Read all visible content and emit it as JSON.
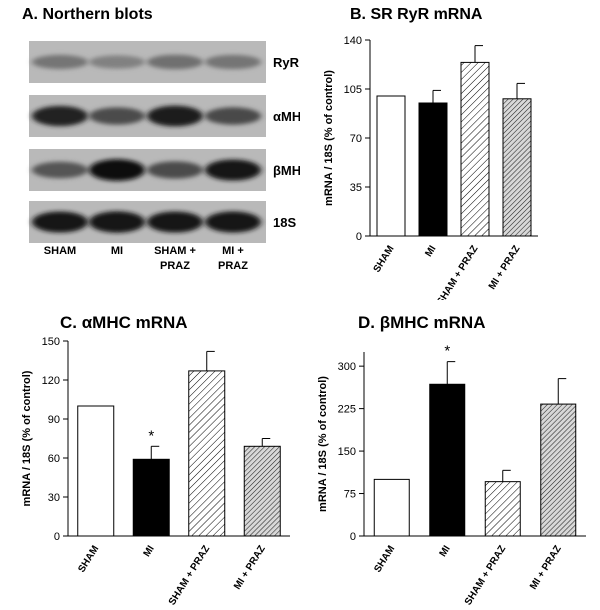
{
  "figure": {
    "panel_a": {
      "title": "A.  Northern blots",
      "rows": [
        {
          "label": "RyR",
          "intensities": [
            0.35,
            0.28,
            0.38,
            0.36
          ]
        },
        {
          "label": "αMHC",
          "intensities": [
            0.85,
            0.6,
            0.9,
            0.62
          ]
        },
        {
          "label": "βMHC",
          "intensities": [
            0.55,
            0.98,
            0.6,
            0.92
          ]
        },
        {
          "label": "18S",
          "intensities": [
            0.92,
            0.95,
            0.92,
            0.93
          ]
        }
      ],
      "lanes": [
        "SHAM",
        "MI",
        "SHAM +\nPRAZ",
        "MI +\nPRAZ"
      ]
    }
  },
  "chart_data": [
    {
      "type": "bar",
      "title": "B.  SR RyR mRNA",
      "ylabel": "mRNA / 18S (% of control)",
      "categories": [
        "SHAM",
        "MI",
        "SHAM + PRAZ",
        "MI + PRAZ"
      ],
      "values": [
        100,
        95,
        124,
        98
      ],
      "errors": [
        0,
        9,
        12,
        11
      ],
      "ylim": [
        0,
        140
      ],
      "yticks": [
        0,
        35,
        70,
        105,
        140
      ],
      "significant": [
        false,
        false,
        false,
        false
      ],
      "fills": [
        "white",
        "black",
        "hatch",
        "crosshatch"
      ]
    },
    {
      "type": "bar",
      "title": "C.  αMHC mRNA",
      "ylabel": "mRNA / 18S (% of control)",
      "categories": [
        "SHAM",
        "MI",
        "SHAM + PRAZ",
        "MI + PRAZ"
      ],
      "values": [
        100,
        59,
        127,
        69
      ],
      "errors": [
        0,
        10,
        15,
        6
      ],
      "ylim": [
        0,
        150
      ],
      "yticks": [
        0,
        30,
        60,
        90,
        120,
        150
      ],
      "significant": [
        false,
        true,
        false,
        false
      ],
      "fills": [
        "white",
        "black",
        "hatch",
        "crosshatch"
      ]
    },
    {
      "type": "bar",
      "title": "D.  βMHC mRNA",
      "ylabel": "mRNA / 18S (% of control)",
      "categories": [
        "SHAM",
        "MI",
        "SHAM + PRAZ",
        "MI + PRAZ"
      ],
      "values": [
        100,
        268,
        96,
        233
      ],
      "errors": [
        0,
        40,
        20,
        45
      ],
      "ylim": [
        0,
        325
      ],
      "yticks": [
        0,
        75,
        150,
        225,
        300
      ],
      "significant": [
        false,
        true,
        false,
        false
      ],
      "fills": [
        "white",
        "black",
        "hatch",
        "crosshatch"
      ]
    }
  ],
  "marker": "*"
}
